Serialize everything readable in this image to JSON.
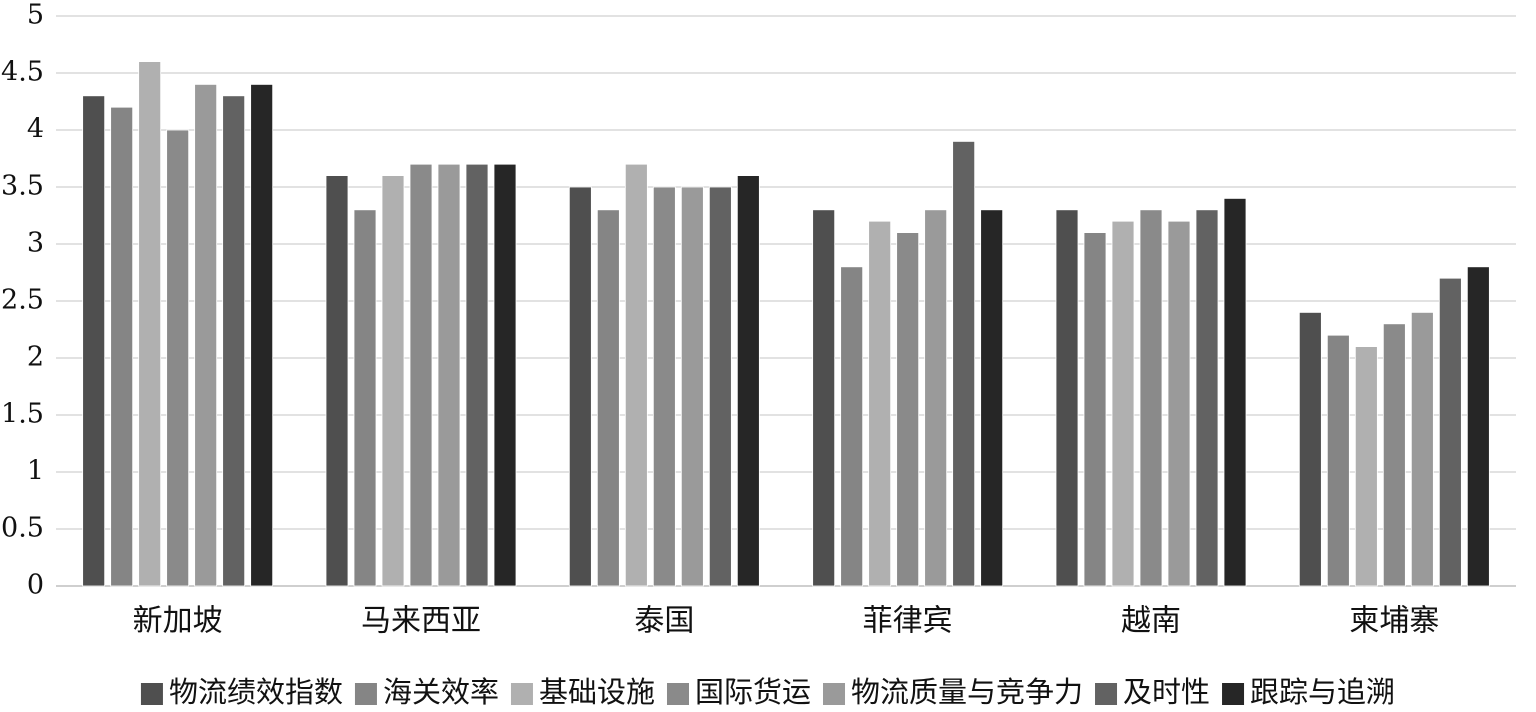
{
  "chart_data": {
    "type": "bar",
    "categories": [
      "新加坡",
      "马来西亚",
      "泰国",
      "菲律宾",
      "越南",
      "柬埔寨"
    ],
    "series": [
      {
        "name": "物流绩效指数",
        "color": "#4f4f4f",
        "values": [
          4.3,
          3.6,
          3.5,
          3.3,
          3.3,
          2.4
        ]
      },
      {
        "name": "海关效率",
        "color": "#858585",
        "values": [
          4.2,
          3.3,
          3.3,
          2.8,
          3.1,
          2.2
        ]
      },
      {
        "name": "基础设施",
        "color": "#b0b0b0",
        "values": [
          4.6,
          3.6,
          3.7,
          3.2,
          3.2,
          2.1
        ]
      },
      {
        "name": "国际货运",
        "color": "#8a8a8a",
        "values": [
          4.0,
          3.7,
          3.5,
          3.1,
          3.3,
          2.3
        ]
      },
      {
        "name": "物流质量与竞争力",
        "color": "#9a9a9a",
        "values": [
          4.4,
          3.7,
          3.5,
          3.3,
          3.2,
          2.4
        ]
      },
      {
        "name": "及时性",
        "color": "#626262",
        "values": [
          4.3,
          3.7,
          3.5,
          3.9,
          3.3,
          2.7
        ]
      },
      {
        "name": "跟踪与追溯",
        "color": "#262626",
        "values": [
          4.4,
          3.7,
          3.6,
          3.3,
          3.4,
          2.8
        ]
      }
    ],
    "y_ticks": [
      "0",
      "0.5",
      "1",
      "1.5",
      "2",
      "2.5",
      "3",
      "3.5",
      "4",
      "4.5",
      "5"
    ],
    "ylim": [
      0,
      5
    ],
    "grid": true,
    "legend_position": "bottom",
    "title": "",
    "xlabel": "",
    "ylabel": "",
    "gridline_color": "#d9d9d9"
  }
}
